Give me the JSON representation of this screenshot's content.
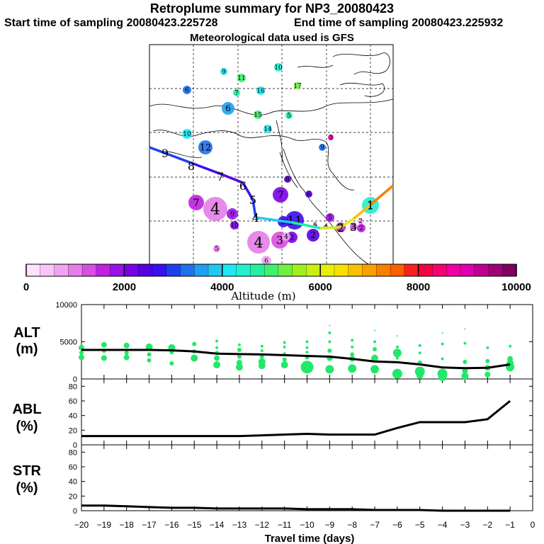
{
  "header": {
    "title": "Retroplume summary for NP3_20080423",
    "start_sampling": "Start time of sampling 20080423.225728",
    "end_sampling": "End time of sampling 20080423.225932",
    "met_data": "Meteorological data used is GFS"
  },
  "map": {
    "trajectory_labels": [
      {
        "n": "1",
        "day": 1,
        "alt_m": 7200
      },
      {
        "n": "2",
        "day": 2,
        "alt_m": 6000
      },
      {
        "n": "3",
        "day": 3,
        "alt_m": 6300
      },
      {
        "n": "4",
        "day": 4,
        "alt_m": 4000
      },
      {
        "n": "5",
        "day": 5,
        "alt_m": 3900
      },
      {
        "n": "6",
        "day": 6,
        "alt_m": 2600
      },
      {
        "n": "7",
        "day": 7,
        "alt_m": 2300
      },
      {
        "n": "8",
        "day": 8,
        "alt_m": 2800
      },
      {
        "n": "9",
        "day": 9,
        "alt_m": 3200
      }
    ],
    "clusters": [
      {
        "n": "9",
        "alt_m": 4200
      },
      {
        "n": "11",
        "alt_m": 4900
      },
      {
        "n": "10",
        "alt_m": 4400
      },
      {
        "n": "6",
        "alt_m": 3200
      },
      {
        "n": "7",
        "alt_m": 4700
      },
      {
        "n": "16",
        "alt_m": 4000
      },
      {
        "n": "17",
        "alt_m": 5200
      },
      {
        "n": "6",
        "alt_m": 3600
      },
      {
        "n": "15",
        "alt_m": 4900
      },
      {
        "n": "5",
        "alt_m": 4800
      },
      {
        "n": "14",
        "alt_m": 4200
      },
      {
        "n": "3",
        "alt_m": 8800
      },
      {
        "n": "10",
        "alt_m": 4000
      },
      {
        "n": "12",
        "alt_m": 3300
      },
      {
        "n": "9",
        "alt_m": 3200
      },
      {
        "n": "8",
        "alt_m": 2500
      },
      {
        "n": "7",
        "alt_m": 2200
      },
      {
        "n": "6",
        "alt_m": 2300
      },
      {
        "n": "7",
        "alt_m": 1600
      },
      {
        "n": "4",
        "alt_m": 1100
      },
      {
        "n": "9",
        "alt_m": 1800
      },
      {
        "n": "10",
        "alt_m": 2000
      },
      {
        "n": "11",
        "alt_m": 2700
      },
      {
        "n": "8",
        "alt_m": 2800
      },
      {
        "n": "5",
        "alt_m": 1800
      },
      {
        "n": "4",
        "alt_m": 1100
      },
      {
        "n": "6",
        "alt_m": 700
      },
      {
        "n": "3",
        "alt_m": 1400
      },
      {
        "n": "2",
        "alt_m": 2300
      },
      {
        "n": "2",
        "alt_m": 2100
      },
      {
        "n": "1",
        "alt_m": 1600
      },
      {
        "n": "3",
        "alt_m": 1200
      },
      {
        "n": "2",
        "alt_m": 1600
      },
      {
        "n": "4",
        "alt_m": 800
      },
      {
        "n": "5",
        "alt_m": 900
      },
      {
        "n": "2",
        "alt_m": 800
      },
      {
        "n": "1",
        "alt_m": 4500
      },
      {
        "n": "3",
        "alt_m": 1200
      },
      {
        "n": "4",
        "alt_m": 1200
      },
      {
        "n": "5",
        "alt_m": 1400
      }
    ]
  },
  "colorbar": {
    "title": "Altitude (m)",
    "ticks": [
      "0",
      "2000",
      "4000",
      "6000",
      "8000",
      "10000"
    ],
    "colors": [
      "#fde2fd",
      "#f7c6f7",
      "#f0a4f0",
      "#e57de8",
      "#d94fe0",
      "#c020e0",
      "#9a10e8",
      "#7a00e8",
      "#5500e0",
      "#3a10f0",
      "#2040f0",
      "#2070f0",
      "#20a0f0",
      "#20c8f0",
      "#20e8f0",
      "#20f0d0",
      "#20f0a0",
      "#40f070",
      "#70f040",
      "#a0f020",
      "#c8f010",
      "#e8f000",
      "#f8e000",
      "#f8c000",
      "#f8a000",
      "#f88000",
      "#f86000",
      "#f82020",
      "#f80040",
      "#f80070",
      "#f000a0",
      "#e000b0",
      "#c00090",
      "#a00078",
      "#800060"
    ]
  },
  "chart_data": [
    {
      "type": "line",
      "panel": "ALT",
      "ylabel": "ALT (m)",
      "ylim": [
        0,
        10000
      ],
      "yticks": [
        "0",
        "5000",
        "10000"
      ],
      "x": [
        -20,
        -19,
        -18,
        -17,
        -16,
        -15,
        -14,
        -13,
        -12,
        -11,
        -10,
        -9,
        -8,
        -7,
        -6,
        -5,
        -4,
        -3,
        -2,
        -1
      ],
      "series": [
        {
          "name": "median altitude",
          "values": [
            3900,
            3900,
            3900,
            3900,
            3850,
            3700,
            3400,
            3350,
            3300,
            3200,
            3100,
            3000,
            2700,
            2350,
            2250,
            1950,
            1550,
            1450,
            1500,
            1950
          ]
        }
      ],
      "scatter": [
        {
          "x": -20,
          "y": 4200,
          "s": 4
        },
        {
          "x": -20,
          "y": 3500,
          "s": 3
        },
        {
          "x": -20,
          "y": 2900,
          "s": 4
        },
        {
          "x": -19,
          "y": 4600,
          "s": 4
        },
        {
          "x": -19,
          "y": 3800,
          "s": 3
        },
        {
          "x": -19,
          "y": 2800,
          "s": 4
        },
        {
          "x": -18,
          "y": 4500,
          "s": 4
        },
        {
          "x": -18,
          "y": 3500,
          "s": 3
        },
        {
          "x": -18,
          "y": 2900,
          "s": 4
        },
        {
          "x": -17,
          "y": 4300,
          "s": 5
        },
        {
          "x": -17,
          "y": 3300,
          "s": 3
        },
        {
          "x": -17,
          "y": 2500,
          "s": 3
        },
        {
          "x": -16,
          "y": 4200,
          "s": 5
        },
        {
          "x": -16,
          "y": 3600,
          "s": 3
        },
        {
          "x": -16,
          "y": 2100,
          "s": 3
        },
        {
          "x": -15,
          "y": 4700,
          "s": 3
        },
        {
          "x": -15,
          "y": 3700,
          "s": 3
        },
        {
          "x": -15,
          "y": 2800,
          "s": 5
        },
        {
          "x": -14,
          "y": 5100,
          "s": 2
        },
        {
          "x": -14,
          "y": 4200,
          "s": 2
        },
        {
          "x": -14,
          "y": 3500,
          "s": 3
        },
        {
          "x": -14,
          "y": 2800,
          "s": 4
        },
        {
          "x": -14,
          "y": 1900,
          "s": 5
        },
        {
          "x": -13,
          "y": 4600,
          "s": 2
        },
        {
          "x": -13,
          "y": 3900,
          "s": 3
        },
        {
          "x": -13,
          "y": 3000,
          "s": 3
        },
        {
          "x": -13,
          "y": 2200,
          "s": 4
        },
        {
          "x": -13,
          "y": 1600,
          "s": 5
        },
        {
          "x": -12,
          "y": 4400,
          "s": 2
        },
        {
          "x": -12,
          "y": 3800,
          "s": 2
        },
        {
          "x": -12,
          "y": 3000,
          "s": 3
        },
        {
          "x": -12,
          "y": 2300,
          "s": 5
        },
        {
          "x": -12,
          "y": 1800,
          "s": 5
        },
        {
          "x": -11,
          "y": 4900,
          "s": 2
        },
        {
          "x": -11,
          "y": 4300,
          "s": 2
        },
        {
          "x": -11,
          "y": 3400,
          "s": 2
        },
        {
          "x": -11,
          "y": 2600,
          "s": 3
        },
        {
          "x": -11,
          "y": 1900,
          "s": 5
        },
        {
          "x": -10,
          "y": 5000,
          "s": 2
        },
        {
          "x": -10,
          "y": 4200,
          "s": 2
        },
        {
          "x": -10,
          "y": 3600,
          "s": 2
        },
        {
          "x": -10,
          "y": 2900,
          "s": 3
        },
        {
          "x": -10,
          "y": 1600,
          "s": 9
        },
        {
          "x": -9,
          "y": 7200,
          "s": 1
        },
        {
          "x": -9,
          "y": 6200,
          "s": 2
        },
        {
          "x": -9,
          "y": 5000,
          "s": 2
        },
        {
          "x": -9,
          "y": 3800,
          "s": 3
        },
        {
          "x": -9,
          "y": 2800,
          "s": 4
        },
        {
          "x": -9,
          "y": 1300,
          "s": 6
        },
        {
          "x": -8,
          "y": 5200,
          "s": 2
        },
        {
          "x": -8,
          "y": 4300,
          "s": 2
        },
        {
          "x": -8,
          "y": 3300,
          "s": 3
        },
        {
          "x": -8,
          "y": 2700,
          "s": 4
        },
        {
          "x": -8,
          "y": 1400,
          "s": 6
        },
        {
          "x": -7,
          "y": 6500,
          "s": 1
        },
        {
          "x": -7,
          "y": 5000,
          "s": 2
        },
        {
          "x": -7,
          "y": 4000,
          "s": 3
        },
        {
          "x": -7,
          "y": 2800,
          "s": 5
        },
        {
          "x": -7,
          "y": 1300,
          "s": 6
        },
        {
          "x": -6,
          "y": 5800,
          "s": 1
        },
        {
          "x": -6,
          "y": 4300,
          "s": 2
        },
        {
          "x": -6,
          "y": 3500,
          "s": 6
        },
        {
          "x": -6,
          "y": 2800,
          "s": 2
        },
        {
          "x": -6,
          "y": 700,
          "s": 7
        },
        {
          "x": -5,
          "y": 4500,
          "s": 2
        },
        {
          "x": -5,
          "y": 3500,
          "s": 2
        },
        {
          "x": -5,
          "y": 2200,
          "s": 3
        },
        {
          "x": -5,
          "y": 1000,
          "s": 7
        },
        {
          "x": -5,
          "y": 500,
          "s": 5
        },
        {
          "x": -4,
          "y": 6200,
          "s": 1
        },
        {
          "x": -4,
          "y": 4700,
          "s": 2
        },
        {
          "x": -4,
          "y": 2700,
          "s": 2
        },
        {
          "x": -4,
          "y": 700,
          "s": 7
        },
        {
          "x": -4,
          "y": 300,
          "s": 6
        },
        {
          "x": -3,
          "y": 6700,
          "s": 1
        },
        {
          "x": -3,
          "y": 4800,
          "s": 2
        },
        {
          "x": -3,
          "y": 2300,
          "s": 3
        },
        {
          "x": -3,
          "y": 1100,
          "s": 4
        },
        {
          "x": -3,
          "y": 400,
          "s": 5
        },
        {
          "x": -2,
          "y": 4200,
          "s": 2
        },
        {
          "x": -2,
          "y": 2400,
          "s": 3
        },
        {
          "x": -2,
          "y": 1500,
          "s": 4
        },
        {
          "x": -2,
          "y": 600,
          "s": 4
        },
        {
          "x": -1,
          "y": 4400,
          "s": 2
        },
        {
          "x": -1,
          "y": 2700,
          "s": 4
        },
        {
          "x": -1,
          "y": 2100,
          "s": 5
        },
        {
          "x": -1,
          "y": 1600,
          "s": 6
        }
      ]
    },
    {
      "type": "line",
      "panel": "ABL",
      "ylabel": "ABL (%)",
      "ylim": [
        0,
        90
      ],
      "yticks": [
        "0",
        "20",
        "40",
        "60",
        "80"
      ],
      "x": [
        -20,
        -19,
        -18,
        -17,
        -16,
        -15,
        -14,
        -13,
        -12,
        -11,
        -10,
        -9,
        -8,
        -7,
        -6,
        -5,
        -4,
        -3,
        -2,
        -1
      ],
      "series": [
        {
          "name": "ABL fraction",
          "values": [
            12,
            12,
            12,
            12,
            12,
            12,
            12,
            12,
            13,
            14,
            15,
            14,
            14,
            14,
            23,
            31,
            31,
            31,
            35,
            60
          ]
        }
      ]
    },
    {
      "type": "line",
      "panel": "STR",
      "ylabel": "STR (%)",
      "ylim": [
        0,
        90
      ],
      "yticks": [
        "0",
        "20",
        "40",
        "60",
        "80"
      ],
      "x": [
        -20,
        -19,
        -18,
        -17,
        -16,
        -15,
        -14,
        -13,
        -12,
        -11,
        -10,
        -9,
        -8,
        -7,
        -6,
        -5,
        -4,
        -3,
        -2,
        -1
      ],
      "series": [
        {
          "name": "stratospheric fraction",
          "values": [
            7,
            7,
            6,
            5,
            4,
            4,
            3,
            3,
            3,
            3,
            2,
            2,
            2,
            1,
            1,
            1,
            0,
            0,
            0,
            0
          ]
        }
      ]
    }
  ],
  "xaxis": {
    "label": "Travel time (days)",
    "ticks": [
      "−20",
      "−19",
      "−18",
      "−17",
      "−16",
      "−15",
      "−14",
      "−13",
      "−12",
      "−11",
      "−10",
      "−9",
      "−8",
      "−7",
      "−6",
      "−5",
      "−4",
      "−3",
      "−2",
      "−1",
      "0"
    ]
  },
  "panels": {
    "alt_label_1": "ALT",
    "alt_label_2": "(m)",
    "abl_label_1": "ABL",
    "abl_label_2": "(%)",
    "str_label_1": "STR",
    "str_label_2": "(%)"
  }
}
